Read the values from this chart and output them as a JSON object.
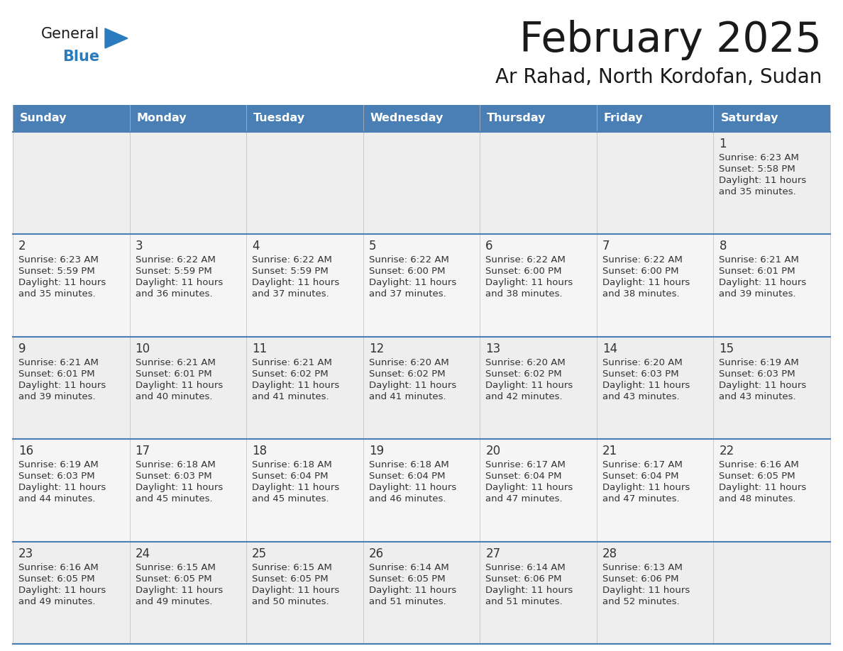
{
  "title": "February 2025",
  "subtitle": "Ar Rahad, North Kordofan, Sudan",
  "header_color": "#4a7fb5",
  "header_text_color": "#ffffff",
  "days_of_week": [
    "Sunday",
    "Monday",
    "Tuesday",
    "Wednesday",
    "Thursday",
    "Friday",
    "Saturday"
  ],
  "bg_color": "#ffffff",
  "cell_bg_row0": "#eeeeee",
  "cell_bg_row1": "#f5f5f5",
  "cell_bg_row2": "#eeeeee",
  "cell_bg_row3": "#f5f5f5",
  "cell_bg_row4": "#eeeeee",
  "row_line_color": "#4a7fb5",
  "text_color": "#333333",
  "calendar_data": [
    [
      {
        "day": "",
        "lines": []
      },
      {
        "day": "",
        "lines": []
      },
      {
        "day": "",
        "lines": []
      },
      {
        "day": "",
        "lines": []
      },
      {
        "day": "",
        "lines": []
      },
      {
        "day": "",
        "lines": []
      },
      {
        "day": "1",
        "lines": [
          "Sunrise: 6:23 AM",
          "Sunset: 5:58 PM",
          "Daylight: 11 hours",
          "and 35 minutes."
        ]
      }
    ],
    [
      {
        "day": "2",
        "lines": [
          "Sunrise: 6:23 AM",
          "Sunset: 5:59 PM",
          "Daylight: 11 hours",
          "and 35 minutes."
        ]
      },
      {
        "day": "3",
        "lines": [
          "Sunrise: 6:22 AM",
          "Sunset: 5:59 PM",
          "Daylight: 11 hours",
          "and 36 minutes."
        ]
      },
      {
        "day": "4",
        "lines": [
          "Sunrise: 6:22 AM",
          "Sunset: 5:59 PM",
          "Daylight: 11 hours",
          "and 37 minutes."
        ]
      },
      {
        "day": "5",
        "lines": [
          "Sunrise: 6:22 AM",
          "Sunset: 6:00 PM",
          "Daylight: 11 hours",
          "and 37 minutes."
        ]
      },
      {
        "day": "6",
        "lines": [
          "Sunrise: 6:22 AM",
          "Sunset: 6:00 PM",
          "Daylight: 11 hours",
          "and 38 minutes."
        ]
      },
      {
        "day": "7",
        "lines": [
          "Sunrise: 6:22 AM",
          "Sunset: 6:00 PM",
          "Daylight: 11 hours",
          "and 38 minutes."
        ]
      },
      {
        "day": "8",
        "lines": [
          "Sunrise: 6:21 AM",
          "Sunset: 6:01 PM",
          "Daylight: 11 hours",
          "and 39 minutes."
        ]
      }
    ],
    [
      {
        "day": "9",
        "lines": [
          "Sunrise: 6:21 AM",
          "Sunset: 6:01 PM",
          "Daylight: 11 hours",
          "and 39 minutes."
        ]
      },
      {
        "day": "10",
        "lines": [
          "Sunrise: 6:21 AM",
          "Sunset: 6:01 PM",
          "Daylight: 11 hours",
          "and 40 minutes."
        ]
      },
      {
        "day": "11",
        "lines": [
          "Sunrise: 6:21 AM",
          "Sunset: 6:02 PM",
          "Daylight: 11 hours",
          "and 41 minutes."
        ]
      },
      {
        "day": "12",
        "lines": [
          "Sunrise: 6:20 AM",
          "Sunset: 6:02 PM",
          "Daylight: 11 hours",
          "and 41 minutes."
        ]
      },
      {
        "day": "13",
        "lines": [
          "Sunrise: 6:20 AM",
          "Sunset: 6:02 PM",
          "Daylight: 11 hours",
          "and 42 minutes."
        ]
      },
      {
        "day": "14",
        "lines": [
          "Sunrise: 6:20 AM",
          "Sunset: 6:03 PM",
          "Daylight: 11 hours",
          "and 43 minutes."
        ]
      },
      {
        "day": "15",
        "lines": [
          "Sunrise: 6:19 AM",
          "Sunset: 6:03 PM",
          "Daylight: 11 hours",
          "and 43 minutes."
        ]
      }
    ],
    [
      {
        "day": "16",
        "lines": [
          "Sunrise: 6:19 AM",
          "Sunset: 6:03 PM",
          "Daylight: 11 hours",
          "and 44 minutes."
        ]
      },
      {
        "day": "17",
        "lines": [
          "Sunrise: 6:18 AM",
          "Sunset: 6:03 PM",
          "Daylight: 11 hours",
          "and 45 minutes."
        ]
      },
      {
        "day": "18",
        "lines": [
          "Sunrise: 6:18 AM",
          "Sunset: 6:04 PM",
          "Daylight: 11 hours",
          "and 45 minutes."
        ]
      },
      {
        "day": "19",
        "lines": [
          "Sunrise: 6:18 AM",
          "Sunset: 6:04 PM",
          "Daylight: 11 hours",
          "and 46 minutes."
        ]
      },
      {
        "day": "20",
        "lines": [
          "Sunrise: 6:17 AM",
          "Sunset: 6:04 PM",
          "Daylight: 11 hours",
          "and 47 minutes."
        ]
      },
      {
        "day": "21",
        "lines": [
          "Sunrise: 6:17 AM",
          "Sunset: 6:04 PM",
          "Daylight: 11 hours",
          "and 47 minutes."
        ]
      },
      {
        "day": "22",
        "lines": [
          "Sunrise: 6:16 AM",
          "Sunset: 6:05 PM",
          "Daylight: 11 hours",
          "and 48 minutes."
        ]
      }
    ],
    [
      {
        "day": "23",
        "lines": [
          "Sunrise: 6:16 AM",
          "Sunset: 6:05 PM",
          "Daylight: 11 hours",
          "and 49 minutes."
        ]
      },
      {
        "day": "24",
        "lines": [
          "Sunrise: 6:15 AM",
          "Sunset: 6:05 PM",
          "Daylight: 11 hours",
          "and 49 minutes."
        ]
      },
      {
        "day": "25",
        "lines": [
          "Sunrise: 6:15 AM",
          "Sunset: 6:05 PM",
          "Daylight: 11 hours",
          "and 50 minutes."
        ]
      },
      {
        "day": "26",
        "lines": [
          "Sunrise: 6:14 AM",
          "Sunset: 6:05 PM",
          "Daylight: 11 hours",
          "and 51 minutes."
        ]
      },
      {
        "day": "27",
        "lines": [
          "Sunrise: 6:14 AM",
          "Sunset: 6:06 PM",
          "Daylight: 11 hours",
          "and 51 minutes."
        ]
      },
      {
        "day": "28",
        "lines": [
          "Sunrise: 6:13 AM",
          "Sunset: 6:06 PM",
          "Daylight: 11 hours",
          "and 52 minutes."
        ]
      },
      {
        "day": "",
        "lines": []
      }
    ]
  ],
  "logo_text_general": "General",
  "logo_text_blue": "Blue",
  "logo_general_color": "#1a1a1a",
  "logo_blue_color": "#2b7bbf",
  "logo_triangle_color": "#2b7bbf"
}
